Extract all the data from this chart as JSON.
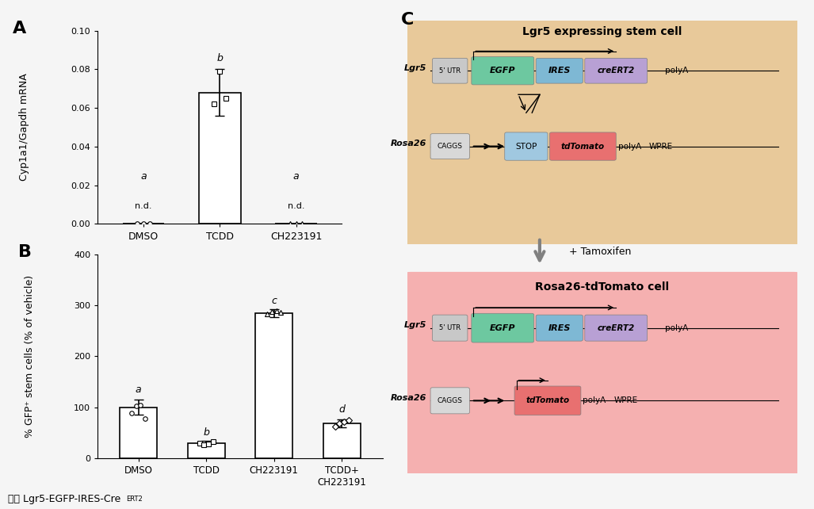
{
  "panel_A": {
    "categories": [
      "DMSO",
      "TCDD",
      "CH223191"
    ],
    "bar_values": [
      0.0,
      0.068,
      0.0
    ],
    "bar_colors": [
      "white",
      "white",
      "white"
    ],
    "error_bars": [
      0.0,
      0.012,
      0.0
    ],
    "dot_values": {
      "DMSO": [
        0.0,
        0.0,
        0.0
      ],
      "TCDD": [
        0.062,
        0.079,
        0.065
      ],
      "CH223191": [
        0.0,
        0.0,
        0.0
      ]
    },
    "dot_marker_DMSO": "o",
    "dot_marker_TCDD": "s",
    "dot_marker_CH223191": "^",
    "letter_labels": {
      "DMSO": "a",
      "TCDD": "b",
      "CH223191": "a"
    },
    "nd_labels": {
      "DMSO": "n.d.",
      "CH223191": "n.d."
    },
    "ylabel": "Cyp1a1/Gapdh mRNA",
    "ylim": [
      0,
      0.1
    ],
    "yticks": [
      0.0,
      0.02,
      0.04,
      0.06,
      0.08,
      0.1
    ],
    "panel_label": "A"
  },
  "panel_B": {
    "categories": [
      "DMSO",
      "TCDD",
      "CH223191",
      "TCDD+\nCH223191"
    ],
    "bar_values": [
      100,
      30,
      285,
      68
    ],
    "bar_colors": [
      "white",
      "white",
      "white",
      "white"
    ],
    "error_bars": [
      15,
      4,
      8,
      8
    ],
    "dot_values": {
      "DMSO": [
        88,
        102,
        104,
        78
      ],
      "TCDD": [
        30,
        26,
        28,
        32
      ],
      "CH223191": [
        283,
        288,
        290,
        286
      ],
      "TCDD+\nCH223191": [
        62,
        68,
        72,
        74
      ]
    },
    "dot_marker_DMSO": "o",
    "dot_marker_TCDD": "s",
    "dot_marker_CH223191": "^",
    "dot_marker_last": "D",
    "letter_labels": {
      "DMSO": "a",
      "TCDD": "b",
      "CH223191": "c",
      "TCDD+\nCH223191": "d"
    },
    "ylabel": "% GFP⁺ stem cells (% of vehicle)",
    "ylim": [
      0,
      400
    ],
    "yticks": [
      0,
      100,
      200,
      300,
      400
    ],
    "panel_label": "B"
  },
  "background_color": "#f5f5f5",
  "dot_color": "black",
  "bar_edge_color": "black",
  "bar_linewidth": 1.2,
  "font_family": "Arial",
  "footer_text": "鼠： Lgr5-EGFP-IRES-Cre",
  "footer_superscript": "ERT2",
  "panel_C": {
    "top_cell_title": "Lgr5 expressing stem cell",
    "top_cell_bg": "#e8c99a",
    "bottom_cell_title": "Rosa26-tdTomato cell",
    "bottom_cell_bg": "#f5b0b0",
    "arrow_label": "+ Tamoxifen",
    "lgr5_label": "Lgr5",
    "rosa26_label": "Rosa26",
    "egfp_color": "#6dc8a0",
    "ires_color": "#7eb8d4",
    "creert2_color": "#b8a0d4",
    "tdtomato_color": "#e87070",
    "utr_color": "#c8c8c8",
    "polya_color": "#c8c8c8",
    "caggs_color": "#d8d8d8",
    "stop_color": "#a0c8e0",
    "panel_label": "C"
  }
}
